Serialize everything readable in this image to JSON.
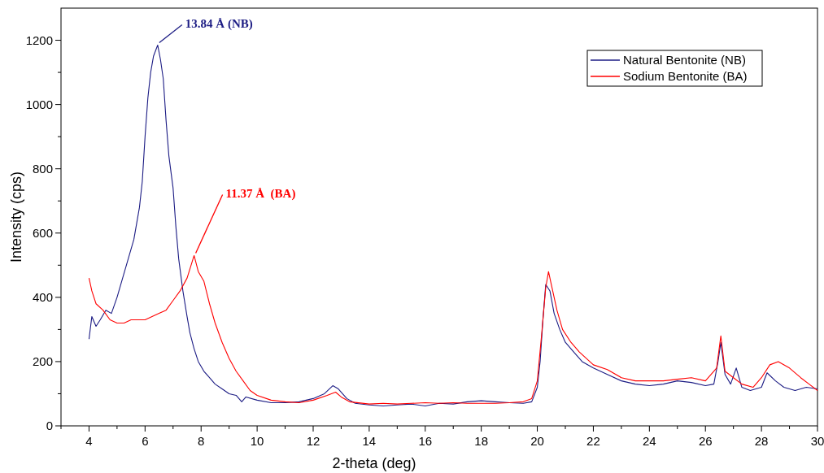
{
  "chart_data": {
    "type": "line",
    "xlabel": "2-theta (deg)",
    "ylabel": "Intensity (cps)",
    "xlim": [
      3,
      30
    ],
    "ylim": [
      0,
      1300
    ],
    "xticks": [
      {
        "value": 3,
        "label": null
      },
      4,
      {
        "value": 5,
        "label": null
      },
      6,
      {
        "value": 7,
        "label": null
      },
      8,
      {
        "value": 9,
        "label": null
      },
      10,
      {
        "value": 11,
        "label": null
      },
      12,
      {
        "value": 13,
        "label": null
      },
      14,
      {
        "value": 15,
        "label": null
      },
      16,
      {
        "value": 17,
        "label": null
      },
      18,
      {
        "value": 19,
        "label": null
      },
      20,
      {
        "value": 21,
        "label": null
      },
      22,
      {
        "value": 23,
        "label": null
      },
      24,
      {
        "value": 25,
        "label": null
      },
      26,
      {
        "value": 27,
        "label": null
      },
      28,
      {
        "value": 29,
        "label": null
      },
      30
    ],
    "yticks": [
      0,
      {
        "value": 100,
        "label": null
      },
      200,
      {
        "value": 300,
        "label": null
      },
      400,
      {
        "value": 500,
        "label": null
      },
      600,
      {
        "value": 700,
        "label": null
      },
      800,
      {
        "value": 900,
        "label": null
      },
      1000,
      {
        "value": 1100,
        "label": null
      },
      1200
    ],
    "grid": false,
    "legend": "top right",
    "marker": "none",
    "line_style": "solid",
    "annotations": [
      {
        "text": "13.84 Å (NB)",
        "x": 6.45,
        "y": 1185
      },
      {
        "text": "11.37 Å  (BA)",
        "x": 7.75,
        "y": 530
      }
    ],
    "series": [
      {
        "name": "Natural Bentonite (NB)",
        "color": "#1c1c84",
        "x": [
          4.0,
          4.1,
          4.25,
          4.4,
          4.6,
          4.8,
          5.0,
          5.2,
          5.4,
          5.6,
          5.8,
          5.9,
          6.0,
          6.1,
          6.2,
          6.3,
          6.45,
          6.55,
          6.65,
          6.75,
          6.85,
          7.0,
          7.1,
          7.2,
          7.35,
          7.5,
          7.6,
          7.75,
          7.9,
          8.1,
          8.3,
          8.5,
          8.75,
          9.0,
          9.25,
          9.45,
          9.6,
          10.0,
          10.5,
          11.0,
          11.5,
          12.0,
          12.4,
          12.7,
          12.9,
          13.2,
          13.5,
          14,
          14.5,
          15,
          15.5,
          16,
          16.5,
          17,
          17.5,
          18,
          18.5,
          19,
          19.5,
          19.8,
          20.0,
          20.1,
          20.2,
          20.3,
          20.45,
          20.6,
          20.8,
          21.0,
          21.3,
          21.6,
          22.0,
          22.5,
          23.0,
          23.5,
          24,
          24.5,
          25.0,
          25.5,
          26.0,
          26.3,
          26.45,
          26.55,
          26.7,
          26.9,
          27.1,
          27.3,
          27.6,
          28.0,
          28.2,
          28.5,
          28.8,
          29.2,
          29.6,
          30.0
        ],
        "values": [
          270,
          340,
          310,
          330,
          360,
          350,
          400,
          460,
          520,
          580,
          680,
          760,
          900,
          1020,
          1100,
          1150,
          1185,
          1140,
          1080,
          950,
          840,
          740,
          620,
          520,
          420,
          340,
          290,
          240,
          200,
          170,
          150,
          130,
          115,
          100,
          95,
          75,
          90,
          80,
          72,
          72,
          75,
          85,
          100,
          125,
          115,
          85,
          70,
          65,
          62,
          65,
          68,
          62,
          70,
          68,
          75,
          78,
          75,
          72,
          70,
          75,
          120,
          200,
          330,
          440,
          420,
          350,
          300,
          260,
          230,
          200,
          180,
          160,
          140,
          130,
          125,
          130,
          140,
          135,
          125,
          130,
          200,
          260,
          160,
          130,
          180,
          120,
          110,
          120,
          165,
          140,
          120,
          110,
          120,
          115
        ]
      },
      {
        "name": "Sodium Bentonite (BA)",
        "color": "#ff0000",
        "x": [
          4.0,
          4.1,
          4.25,
          4.5,
          4.75,
          5.0,
          5.25,
          5.5,
          5.75,
          6.0,
          6.25,
          6.5,
          6.75,
          7.0,
          7.25,
          7.5,
          7.75,
          7.9,
          8.1,
          8.3,
          8.5,
          8.75,
          9.0,
          9.25,
          9.5,
          9.75,
          10.0,
          10.5,
          11.0,
          11.5,
          12.0,
          12.5,
          12.8,
          13.0,
          13.3,
          14,
          14.5,
          15,
          15.5,
          16,
          16.5,
          17,
          17.5,
          18,
          18.5,
          19,
          19.5,
          19.8,
          20.0,
          20.15,
          20.3,
          20.4,
          20.5,
          20.7,
          20.9,
          21.2,
          21.5,
          22.0,
          22.5,
          23.0,
          23.5,
          24.0,
          24.5,
          25.0,
          25.5,
          26.0,
          26.4,
          26.55,
          26.7,
          27.0,
          27.3,
          27.7,
          28.0,
          28.3,
          28.6,
          29.0,
          29.4,
          29.7,
          30.0
        ],
        "values": [
          460,
          420,
          380,
          360,
          330,
          320,
          320,
          330,
          330,
          330,
          340,
          350,
          360,
          390,
          420,
          460,
          530,
          480,
          450,
          380,
          320,
          260,
          210,
          170,
          140,
          110,
          95,
          80,
          75,
          72,
          80,
          95,
          105,
          90,
          75,
          68,
          70,
          68,
          70,
          72,
          70,
          72,
          70,
          70,
          70,
          72,
          75,
          85,
          140,
          280,
          430,
          480,
          440,
          360,
          300,
          260,
          230,
          190,
          175,
          150,
          140,
          140,
          140,
          145,
          150,
          140,
          180,
          280,
          170,
          150,
          130,
          120,
          150,
          190,
          200,
          180,
          150,
          130,
          110
        ]
      }
    ]
  }
}
